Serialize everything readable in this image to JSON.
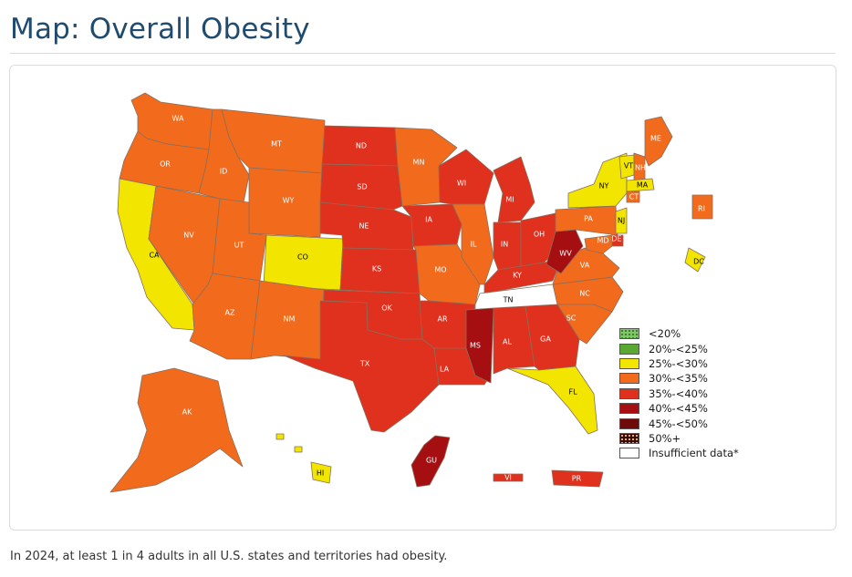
{
  "page": {
    "title": "Map: Overall Obesity",
    "caption": "In 2024, at least 1 in 4 adults in all U.S. states and territories had obesity."
  },
  "colors": {
    "lt20": "#7ec86a",
    "c20_25": "#5aa832",
    "c25_30": "#f2e600",
    "c30_35": "#f26b1d",
    "c35_40": "#e0301e",
    "c40_45": "#a60f12",
    "c45_50": "#6e0a0a",
    "c50plus": "#3a0505",
    "insufficient": "#ffffff"
  },
  "legend": [
    {
      "label": "<20%",
      "color_key": "lt20",
      "pattern": "dots"
    },
    {
      "label": "20%-<25%",
      "color_key": "c20_25",
      "pattern": ""
    },
    {
      "label": "25%-<30%",
      "color_key": "c25_30",
      "pattern": ""
    },
    {
      "label": "30%-<35%",
      "color_key": "c30_35",
      "pattern": ""
    },
    {
      "label": "35%-<40%",
      "color_key": "c35_40",
      "pattern": ""
    },
    {
      "label": "40%-<45%",
      "color_key": "c40_45",
      "pattern": ""
    },
    {
      "label": "45%-<50%",
      "color_key": "c45_50",
      "pattern": ""
    },
    {
      "label": "50%+",
      "color_key": "c50plus",
      "pattern": "dots-dark"
    },
    {
      "label": "Insufficient data*",
      "color_key": "insufficient",
      "pattern": ""
    }
  ],
  "map_data": {
    "states": [
      {
        "abbr": "WA",
        "category": "c30_35"
      },
      {
        "abbr": "OR",
        "category": "c30_35"
      },
      {
        "abbr": "CA",
        "category": "c25_30"
      },
      {
        "abbr": "NV",
        "category": "c30_35"
      },
      {
        "abbr": "ID",
        "category": "c30_35"
      },
      {
        "abbr": "MT",
        "category": "c30_35"
      },
      {
        "abbr": "WY",
        "category": "c30_35"
      },
      {
        "abbr": "UT",
        "category": "c30_35"
      },
      {
        "abbr": "AZ",
        "category": "c30_35"
      },
      {
        "abbr": "CO",
        "category": "c25_30"
      },
      {
        "abbr": "NM",
        "category": "c30_35"
      },
      {
        "abbr": "ND",
        "category": "c35_40"
      },
      {
        "abbr": "SD",
        "category": "c35_40"
      },
      {
        "abbr": "NE",
        "category": "c35_40"
      },
      {
        "abbr": "KS",
        "category": "c35_40"
      },
      {
        "abbr": "OK",
        "category": "c35_40"
      },
      {
        "abbr": "TX",
        "category": "c35_40"
      },
      {
        "abbr": "MN",
        "category": "c30_35"
      },
      {
        "abbr": "IA",
        "category": "c35_40"
      },
      {
        "abbr": "MO",
        "category": "c30_35"
      },
      {
        "abbr": "AR",
        "category": "c35_40"
      },
      {
        "abbr": "LA",
        "category": "c35_40"
      },
      {
        "abbr": "WI",
        "category": "c35_40"
      },
      {
        "abbr": "IL",
        "category": "c30_35"
      },
      {
        "abbr": "MI",
        "category": "c35_40"
      },
      {
        "abbr": "IN",
        "category": "c35_40"
      },
      {
        "abbr": "OH",
        "category": "c35_40"
      },
      {
        "abbr": "KY",
        "category": "c35_40"
      },
      {
        "abbr": "TN",
        "category": "insufficient"
      },
      {
        "abbr": "MS",
        "category": "c40_45"
      },
      {
        "abbr": "AL",
        "category": "c35_40"
      },
      {
        "abbr": "GA",
        "category": "c35_40"
      },
      {
        "abbr": "FL",
        "category": "c25_30"
      },
      {
        "abbr": "SC",
        "category": "c30_35"
      },
      {
        "abbr": "NC",
        "category": "c30_35"
      },
      {
        "abbr": "VA",
        "category": "c30_35"
      },
      {
        "abbr": "WV",
        "category": "c40_45"
      },
      {
        "abbr": "PA",
        "category": "c30_35"
      },
      {
        "abbr": "NY",
        "category": "c25_30"
      },
      {
        "abbr": "VT",
        "category": "c25_30"
      },
      {
        "abbr": "NH",
        "category": "c30_35"
      },
      {
        "abbr": "ME",
        "category": "c30_35"
      },
      {
        "abbr": "MA",
        "category": "c25_30"
      },
      {
        "abbr": "CT",
        "category": "c30_35"
      },
      {
        "abbr": "RI",
        "category": "c30_35"
      },
      {
        "abbr": "NJ",
        "category": "c25_30"
      },
      {
        "abbr": "DE",
        "category": "c35_40"
      },
      {
        "abbr": "MD",
        "category": "c30_35"
      },
      {
        "abbr": "DC",
        "category": "c25_30"
      },
      {
        "abbr": "AK",
        "category": "c30_35"
      },
      {
        "abbr": "HI",
        "category": "c25_30"
      },
      {
        "abbr": "GU",
        "category": "c40_45"
      },
      {
        "abbr": "VI",
        "category": "c35_40"
      },
      {
        "abbr": "PR",
        "category": "c35_40"
      }
    ]
  }
}
